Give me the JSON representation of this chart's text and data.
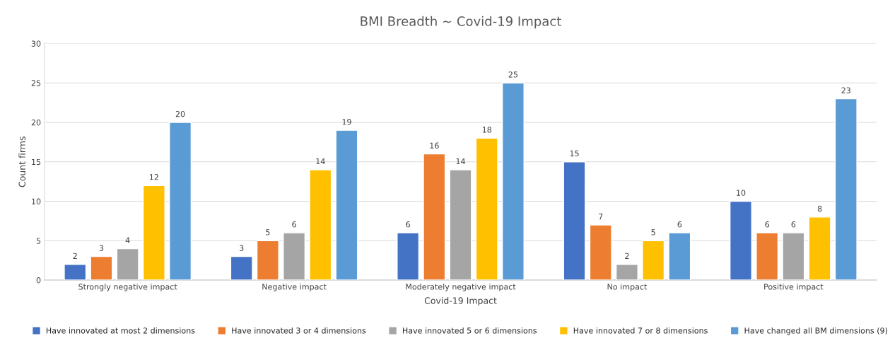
{
  "chart_data": {
    "type": "bar",
    "title": "BMI Breadth ~ Covid-19 Impact",
    "xlabel": "Covid-19 Impact",
    "ylabel": "Count firms",
    "categories": [
      "Strongly negative impact",
      "Negative impact",
      "Moderately negative impact",
      "No impact",
      "Positive impact"
    ],
    "series": [
      {
        "name": "Have innovated at most 2 dimensions",
        "color": "#4472c4",
        "values": [
          2,
          3,
          6,
          15,
          10
        ]
      },
      {
        "name": "Have innovated 3 or 4 dimensions",
        "color": "#ed7d31",
        "values": [
          3,
          5,
          16,
          7,
          6
        ]
      },
      {
        "name": "Have innovated 5 or 6 dimensions",
        "color": "#a5a5a5",
        "values": [
          4,
          6,
          14,
          2,
          6
        ]
      },
      {
        "name": "Have innovated 7 or 8 dimensions",
        "color": "#ffc000",
        "values": [
          12,
          14,
          18,
          5,
          8
        ]
      },
      {
        "name": "Have changed all BM dimensions (9)",
        "color": "#5b9bd5",
        "values": [
          20,
          19,
          25,
          6,
          23
        ]
      }
    ],
    "ylim": [
      0,
      30
    ],
    "yticks": [
      0,
      5,
      10,
      15,
      20,
      25,
      30
    ],
    "grid": "y",
    "legend": "bottom",
    "data_labels": true
  }
}
